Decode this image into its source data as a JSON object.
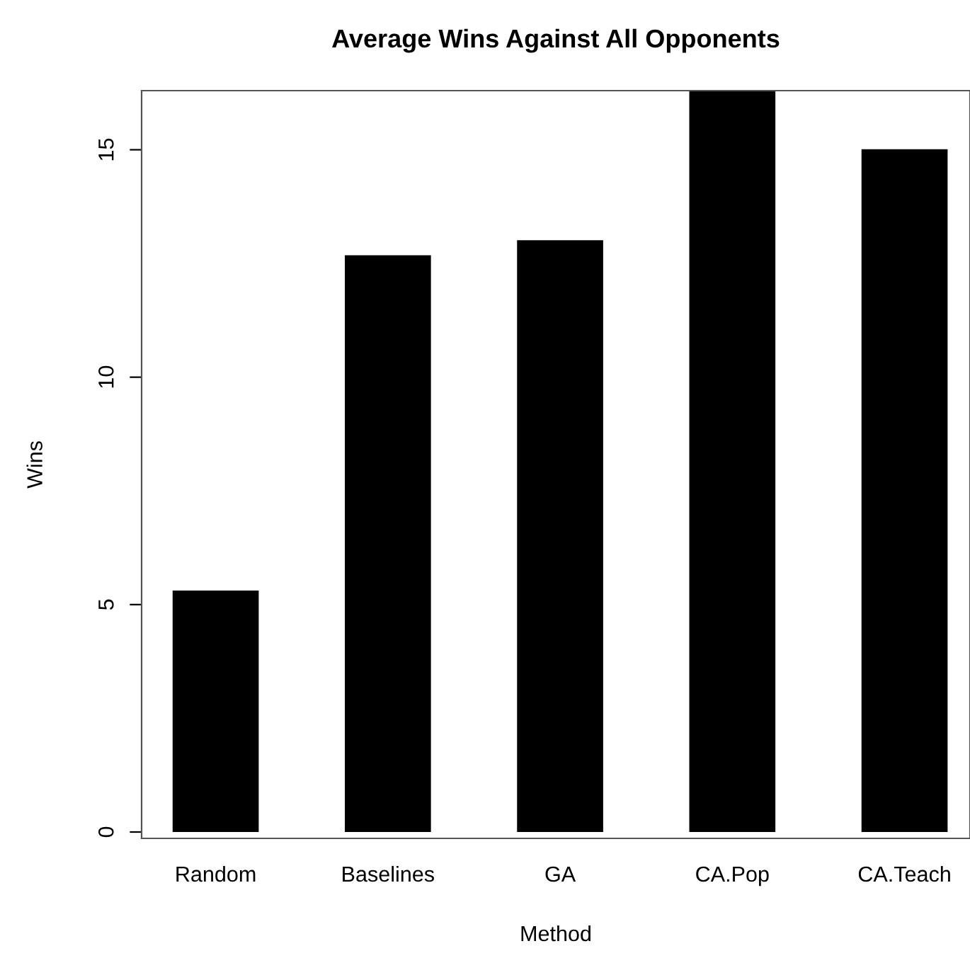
{
  "chart_data": {
    "type": "bar",
    "title": "Average Wins Against All Opponents",
    "xlabel": "Method",
    "ylabel": "Wins",
    "categories": [
      "Random",
      "Baselines",
      "GA",
      "CA.Pop",
      "CA.Teach"
    ],
    "values": [
      5.31,
      12.68,
      13.01,
      16.29,
      15.01
    ],
    "color": "#000000",
    "ylim": [
      -0.14,
      16.3
    ],
    "yticks": [
      0,
      5,
      10,
      15
    ],
    "grid": false
  }
}
